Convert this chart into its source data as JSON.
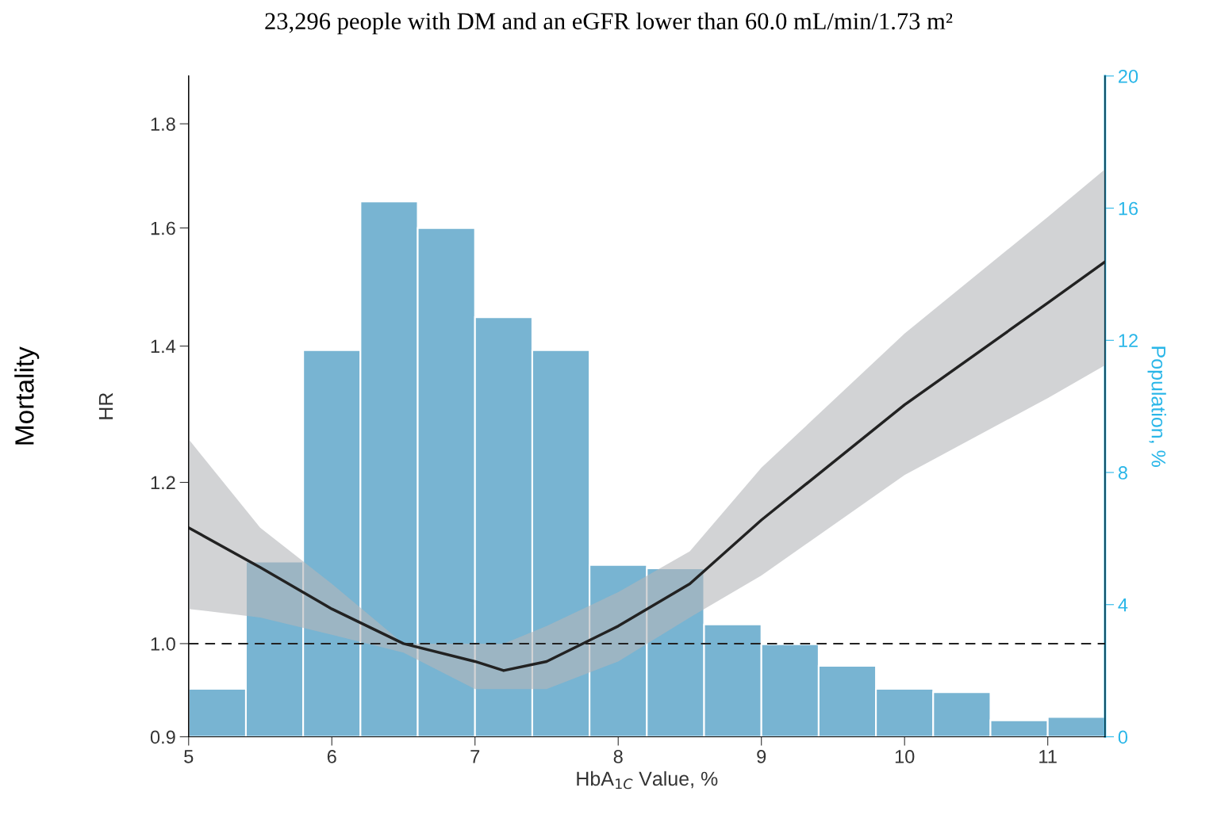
{
  "chart_data": {
    "type": "line",
    "title": "23,296 people with DM and an eGFR lower than 60.0 mL/min/1.73 m²",
    "xlabel": "HbA$_{1C}$ Value, %",
    "ylabel": "HR",
    "y2label": "Population, %",
    "annotations": [
      "Mortality"
    ],
    "log": "y",
    "xlim": [
      5,
      11.4
    ],
    "xticks": [
      5,
      6,
      7,
      8,
      9,
      10,
      11
    ],
    "ylim": [
      0.9,
      1.9
    ],
    "yticks": [
      0.9,
      {
        "value": 1.0,
        "label": "1.0"
      },
      1.2,
      1.4,
      1.6,
      1.8
    ],
    "y2lim": [
      0,
      20
    ],
    "y2ticks": [
      0,
      4,
      8,
      12,
      16,
      20
    ],
    "grid": false,
    "legend": false,
    "ref_lines": [
      {
        "axis": "y",
        "value": 1.0,
        "color": "#222222",
        "line_style": "dashed"
      }
    ],
    "series": [
      {
        "type": "histogram",
        "axis": "y2",
        "color": "#78b4d2",
        "bins": [
          5,
          5.4,
          5.8,
          6.2,
          6.6,
          7.0,
          7.4,
          7.8,
          8.2,
          8.6,
          9.0,
          9.4,
          9.8,
          10.2,
          10.6,
          11.0,
          11.4
        ],
        "values": [
          1.45,
          5.3,
          11.7,
          16.2,
          15.4,
          12.7,
          11.7,
          5.2,
          5.1,
          3.4,
          2.8,
          2.15,
          1.45,
          1.35,
          0.5,
          0.6
        ]
      },
      {
        "color": "#222222",
        "x": [
          5,
          5.5,
          6,
          6.5,
          7,
          7.2,
          7.5,
          8,
          8.5,
          9,
          10,
          11,
          11.4
        ],
        "values": [
          1.14,
          1.09,
          1.04,
          1.0,
          0.98,
          0.97,
          0.98,
          1.02,
          1.07,
          1.15,
          1.31,
          1.47,
          1.54
        ],
        "lower": [
          1.04,
          1.03,
          1.01,
          0.99,
          0.95,
          0.95,
          0.95,
          0.98,
          1.03,
          1.08,
          1.21,
          1.32,
          1.37
        ],
        "upper": [
          1.26,
          1.14,
          1.07,
          1.0,
          1.0,
          1.0,
          1.02,
          1.06,
          1.11,
          1.22,
          1.42,
          1.62,
          1.71
        ]
      }
    ]
  }
}
